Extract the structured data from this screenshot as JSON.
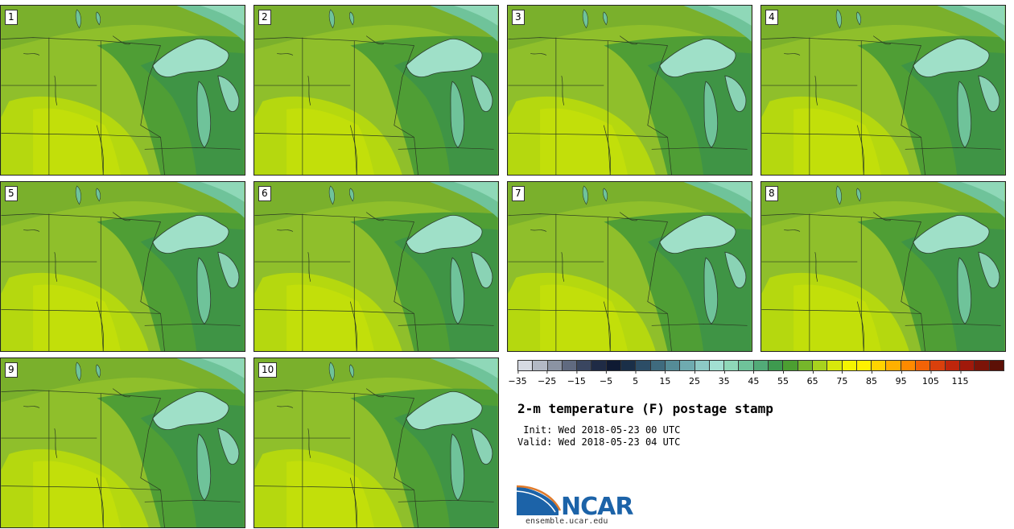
{
  "stamps": [
    {
      "label": "1"
    },
    {
      "label": "2"
    },
    {
      "label": "3"
    },
    {
      "label": "4"
    },
    {
      "label": "5"
    },
    {
      "label": "6"
    },
    {
      "label": "7"
    },
    {
      "label": "8"
    },
    {
      "label": "9"
    },
    {
      "label": "10"
    }
  ],
  "colorbar": {
    "colors": [
      "#d6dae3",
      "#b3b9c5",
      "#8b93a3",
      "#606a80",
      "#3a4660",
      "#1f2b45",
      "#0f1a33",
      "#1a2f48",
      "#2c4d66",
      "#3f6b7e",
      "#558c97",
      "#6fabb0",
      "#8dc9c5",
      "#a2e0d2",
      "#8fd8b8",
      "#6fc39a",
      "#52ab78",
      "#3e9a4f",
      "#4c9f31",
      "#76b72b",
      "#a8d21e",
      "#d7e80c",
      "#f4f400",
      "#fff000",
      "#ffd400",
      "#ffb000",
      "#ff8a00",
      "#f26307",
      "#d9400c",
      "#bf260c",
      "#a0190a",
      "#7c1408",
      "#5c1006"
    ],
    "ticks": [
      "−35",
      "−25",
      "−15",
      "−5",
      "5",
      "15",
      "25",
      "35",
      "45",
      "55",
      "65",
      "75",
      "85",
      "95",
      "105",
      "115"
    ]
  },
  "title": "2-m temperature (F) postage stamp",
  "init_line": " Init: Wed 2018-05-23 00 UTC",
  "valid_line": "Valid: Wed 2018-05-23 04 UTC",
  "logo": {
    "name": "NCAR",
    "url": "ensemble.ucar.edu"
  }
}
